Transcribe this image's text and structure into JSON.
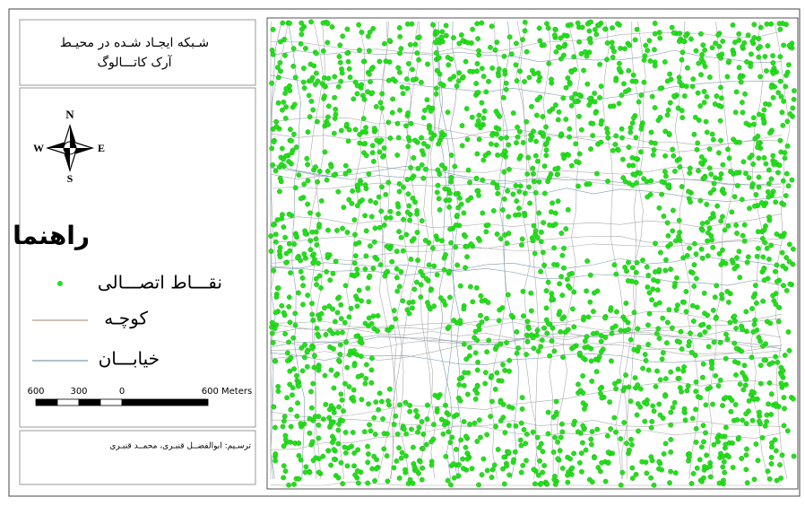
{
  "title": {
    "line1": "شـبکه ایجـاد شـده در محیـط",
    "line2": "آرک کاتـــالوگ"
  },
  "north_arrow": {
    "n": "N",
    "s": "S",
    "e": "E",
    "w": "W"
  },
  "legend": {
    "title": "راهنما",
    "items": [
      "نقـــاط اتصـــالی",
      "کوچـه",
      "خیابـــان"
    ]
  },
  "scale_bar": {
    "labels": [
      "600",
      "300",
      "0",
      "600 Meters"
    ]
  },
  "credits": "ترسـیم: ابوالفضــل قنبـری، محمــد قنبـری"
}
